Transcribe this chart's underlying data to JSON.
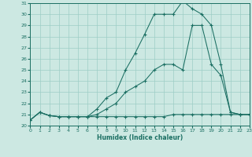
{
  "xlabel": "Humidex (Indice chaleur)",
  "bg_color": "#cce8e2",
  "line_color": "#1a6e62",
  "grid_color": "#9ecdc6",
  "xlim": [
    0,
    23
  ],
  "ylim": [
    20,
    31
  ],
  "xticks": [
    0,
    1,
    2,
    3,
    4,
    5,
    6,
    7,
    8,
    9,
    10,
    11,
    12,
    13,
    14,
    15,
    16,
    17,
    18,
    19,
    20,
    21,
    22,
    23
  ],
  "yticks": [
    20,
    21,
    22,
    23,
    24,
    25,
    26,
    27,
    28,
    29,
    30,
    31
  ],
  "line1_x": [
    0,
    1,
    2,
    3,
    4,
    5,
    6,
    7,
    8,
    9,
    10,
    11,
    12,
    13,
    14,
    15,
    16,
    17,
    18,
    19,
    20,
    21,
    22,
    23
  ],
  "line1_y": [
    20.5,
    21.2,
    20.9,
    20.8,
    20.8,
    20.8,
    20.8,
    20.8,
    20.8,
    20.8,
    20.8,
    20.8,
    20.8,
    20.8,
    20.8,
    21.0,
    21.0,
    21.0,
    21.0,
    21.0,
    21.0,
    21.0,
    21.0,
    21.0
  ],
  "line2_x": [
    0,
    1,
    2,
    3,
    4,
    5,
    6,
    7,
    8,
    9,
    10,
    11,
    12,
    13,
    14,
    15,
    16,
    17,
    18,
    19,
    20,
    21,
    22,
    23
  ],
  "line2_y": [
    20.5,
    21.2,
    20.9,
    20.8,
    20.8,
    20.8,
    20.8,
    21.0,
    21.5,
    22.0,
    23.0,
    23.5,
    24.0,
    25.0,
    25.5,
    25.5,
    25.0,
    29.0,
    29.0,
    25.5,
    24.5,
    21.2,
    21.0,
    21.0
  ],
  "line3_x": [
    0,
    1,
    2,
    3,
    4,
    5,
    6,
    7,
    8,
    9,
    10,
    11,
    12,
    13,
    14,
    15,
    16,
    17,
    18,
    19,
    20,
    21,
    22,
    23
  ],
  "line3_y": [
    20.5,
    21.2,
    20.9,
    20.8,
    20.8,
    20.8,
    20.8,
    21.5,
    22.5,
    23.0,
    25.0,
    26.5,
    28.2,
    30.0,
    30.0,
    30.0,
    31.2,
    30.5,
    30.0,
    29.0,
    25.5,
    21.2,
    21.0,
    21.0
  ]
}
